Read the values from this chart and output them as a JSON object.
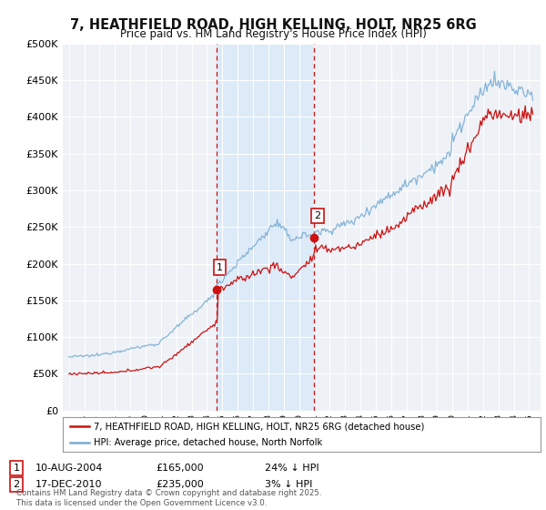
{
  "title": "7, HEATHFIELD ROAD, HIGH KELLING, HOLT, NR25 6RG",
  "subtitle": "Price paid vs. HM Land Registry's House Price Index (HPI)",
  "background_color": "#ffffff",
  "plot_bg_color": "#eef2f7",
  "grid_color": "#ffffff",
  "hpi_color": "#7aadd4",
  "price_color": "#cc1111",
  "vline_color": "#cc1111",
  "vshade_color": "#ddeaf7",
  "ylim": [
    0,
    500000
  ],
  "yticks": [
    0,
    50000,
    100000,
    150000,
    200000,
    250000,
    300000,
    350000,
    400000,
    450000,
    500000
  ],
  "sale1_date": 2004.6,
  "sale1_price": 165000,
  "sale2_date": 2010.96,
  "sale2_price": 235000,
  "legend_line1": "7, HEATHFIELD ROAD, HIGH KELLING, HOLT, NR25 6RG (detached house)",
  "legend_line2": "HPI: Average price, detached house, North Norfolk",
  "footnote": "Contains HM Land Registry data © Crown copyright and database right 2025.\nThis data is licensed under the Open Government Licence v3.0."
}
